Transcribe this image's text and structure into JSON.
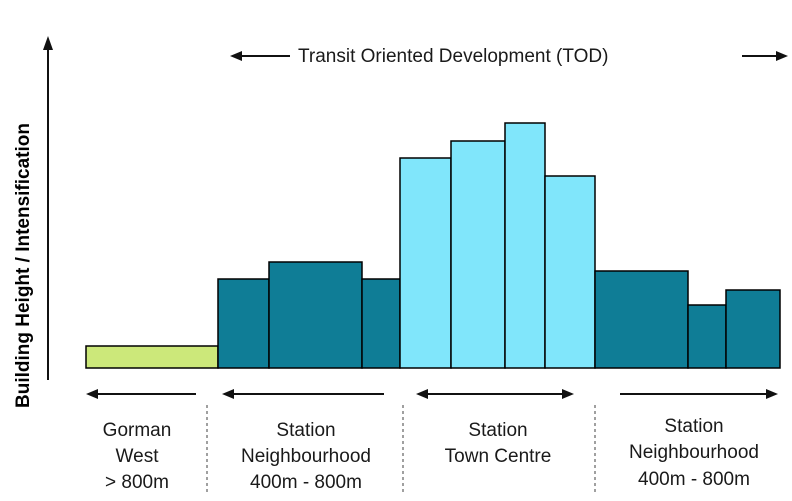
{
  "y_axis_label": "Building Height / Intensification",
  "top_label": "Transit Oriented Development (TOD)",
  "colors": {
    "gorman": "#cce87a",
    "neighbourhood": "#0f7d96",
    "town_centre": "#80e6fb",
    "outline": "#000000",
    "arrow": "#111111",
    "divider": "#808080"
  },
  "zones": [
    {
      "id": "gorman",
      "lines": [
        "Gorman",
        "West",
        "> 800m"
      ]
    },
    {
      "id": "neighbourhood-west",
      "lines": [
        "Station",
        "Neighbourhood",
        "400m - 800m"
      ]
    },
    {
      "id": "town-centre",
      "lines": [
        "Station",
        "Town Centre"
      ]
    },
    {
      "id": "neighbourhood-east",
      "lines": [
        "Station",
        "Neighbourhood",
        "400m - 800m"
      ]
    }
  ]
}
